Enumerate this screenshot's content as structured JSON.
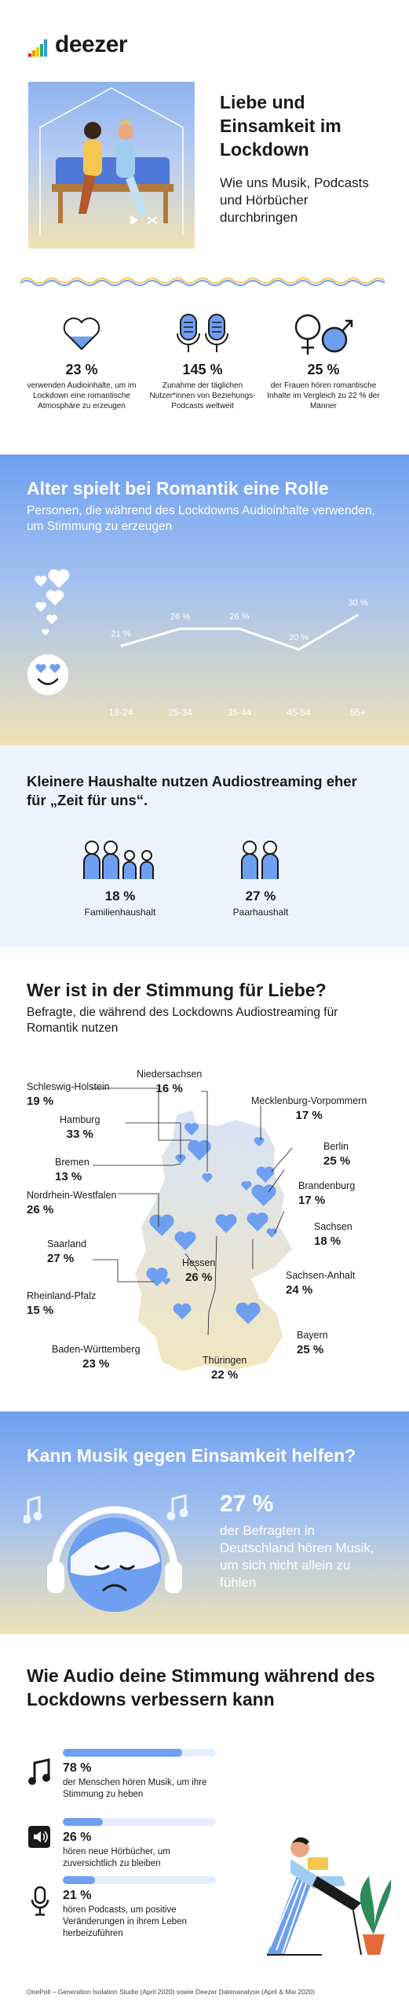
{
  "brand": {
    "name": "deezer"
  },
  "hero": {
    "title": "Liebe und Einsamkeit im Lockdown",
    "subtitle": "Wie uns Musik, Podcasts und Hörbücher durchbringen"
  },
  "stats": [
    {
      "icon": "heart-icon",
      "value": "23 %",
      "text": "verwenden Audioinhalte, um im Lockdown eine romantische Atmosphäre zu erzeugen"
    },
    {
      "icon": "microphone-icon",
      "value": "145 %",
      "text": "Zunahme der täglichen Nutzer*innen von Beziehungs-Podcasts weltweit"
    },
    {
      "icon": "gender-icon",
      "value": "25 %",
      "text": "der Frauen hören romantische Inhalte im Vergleich zu 22 % der Männer"
    }
  ],
  "age": {
    "title": "Alter spielt bei Romantik eine Rolle",
    "subtitle": "Personen, die während des Lockdowns Audioinhalte verwenden, um Stimmung zu erzeugen"
  },
  "chart_data": {
    "type": "line",
    "categories": [
      "18-24",
      "25-34",
      "35-44",
      "45-54",
      "55+"
    ],
    "values": [
      21,
      26,
      26,
      20,
      30
    ],
    "data_labels": [
      "21 %",
      "26 %",
      "26 %",
      "20 %",
      "30 %"
    ],
    "grid": false
  },
  "household": {
    "title": "Kleinere Haushalte nutzen Audiostreaming eher für „Zeit für uns“.",
    "items": [
      {
        "value": "18 %",
        "label": "Familienhaushalt"
      },
      {
        "value": "27 %",
        "label": "Paarhaushalt"
      }
    ]
  },
  "map": {
    "title": "Wer ist in der Stimmung für Liebe?",
    "subtitle": "Befragte, die während des Lockdowns Audiostreaming für Romantik nutzen",
    "regions": [
      {
        "name": "Schleswig-Holstein",
        "value": "19 %"
      },
      {
        "name": "Niedersachsen",
        "value": "16 %"
      },
      {
        "name": "Mecklenburg-Vorpommern",
        "value": "17 %"
      },
      {
        "name": "Hamburg",
        "value": "33 %"
      },
      {
        "name": "Berlin",
        "value": "25 %"
      },
      {
        "name": "Bremen",
        "value": "13 %"
      },
      {
        "name": "Brandenburg",
        "value": "17 %"
      },
      {
        "name": "Nordrhein-Westfalen",
        "value": "26 %"
      },
      {
        "name": "Sachsen",
        "value": "18 %"
      },
      {
        "name": "Saarland",
        "value": "27 %"
      },
      {
        "name": "Hessen",
        "value": "26 %"
      },
      {
        "name": "Sachsen-Anhalt",
        "value": "24 %"
      },
      {
        "name": "Rheinland-Pfalz",
        "value": "15 %"
      },
      {
        "name": "Bayern",
        "value": "25 %"
      },
      {
        "name": "Baden-Württemberg",
        "value": "23 %"
      },
      {
        "name": "Thüringen",
        "value": "22 %"
      }
    ]
  },
  "music": {
    "title": "Kann Musik gegen Einsamkeit helfen?",
    "value": "27 %",
    "text": "der Befragten in Deutschland hören Musik, um sich nicht allein zu fühlen"
  },
  "audio": {
    "title": "Wie Audio deine Stimmung während des Lockdowns verbessern kann",
    "items": [
      {
        "icon": "music-note-icon",
        "value": "78 %",
        "fraction": 0.78,
        "text": "der Menschen hören Musik, um ihre Stimmung zu heben"
      },
      {
        "icon": "audiobook-icon",
        "value": "26 %",
        "fraction": 0.26,
        "text": "hören neue Hörbücher, um zuversichtlich zu bleiben"
      },
      {
        "icon": "microphone-icon",
        "value": "21 %",
        "fraction": 0.21,
        "text": "hören Podcasts, um positive Veränderungen in ihrem Leben herbeizuführen"
      }
    ]
  },
  "footer": {
    "source": "OnePoll – Generation Isolation Studie (April 2020) sowie Deezer Datenanalyse (April & Mai 2020)"
  }
}
